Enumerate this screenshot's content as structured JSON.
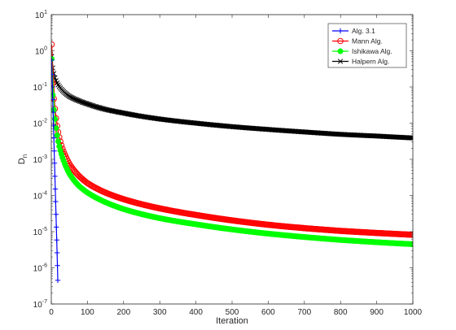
{
  "chart_data": {
    "type": "line",
    "xlabel": "Iteration",
    "ylabel": "D",
    "ylabel_subscript": "n",
    "xlim": [
      0,
      1000
    ],
    "ylim_log10": [
      -7,
      1
    ],
    "y_scale": "log",
    "grid": false,
    "legend_placement": "top-right",
    "x_ticks": [
      "0",
      "100",
      "200",
      "300",
      "400",
      "500",
      "600",
      "700",
      "800",
      "900",
      "1000"
    ],
    "y_ticks": [
      {
        "base": "10",
        "exp": "1"
      },
      {
        "base": "10",
        "exp": "0"
      },
      {
        "base": "10",
        "exp": "-1"
      },
      {
        "base": "10",
        "exp": "-2"
      },
      {
        "base": "10",
        "exp": "-3"
      },
      {
        "base": "10",
        "exp": "-4"
      },
      {
        "base": "10",
        "exp": "-5"
      },
      {
        "base": "10",
        "exp": "-6"
      },
      {
        "base": "10",
        "exp": "-7"
      }
    ],
    "series": [
      {
        "name": "Alg. 3.1",
        "color": "#0000ff",
        "marker": "plus",
        "x": [
          1,
          2,
          3,
          4,
          5,
          6,
          7,
          8,
          9,
          10,
          11,
          12,
          13,
          14,
          15,
          16,
          17,
          18
        ],
        "y": [
          0.55,
          0.22,
          0.1,
          0.045,
          0.02,
          0.0088,
          0.0039,
          0.0017,
          0.00078,
          0.00034,
          0.00015,
          6.8e-05,
          3e-05,
          1.34e-05,
          5.9e-06,
          2.6e-06,
          1.15e-06,
          4.5e-07
        ]
      },
      {
        "name": "Mann Alg.",
        "color": "#ff0000",
        "marker": "circle",
        "x": [
          1,
          10,
          20,
          30,
          50,
          75,
          100,
          150,
          200,
          300,
          400,
          500,
          600,
          700,
          800,
          900,
          1000
        ],
        "y": [
          1.5,
          0.025,
          0.005,
          0.0021,
          0.00075,
          0.00036,
          0.00022,
          0.00012,
          7.9e-05,
          4.4e-05,
          2.9e-05,
          2.05e-05,
          1.55e-05,
          1.25e-05,
          1.05e-05,
          9.2e-06,
          8.2e-06
        ]
      },
      {
        "name": "Ishikawa Alg.",
        "color": "#00ff00",
        "marker": "dot",
        "x": [
          1,
          10,
          20,
          30,
          50,
          75,
          100,
          150,
          200,
          300,
          400,
          500,
          600,
          700,
          800,
          900,
          1000
        ],
        "y": [
          0.6,
          0.013,
          0.0028,
          0.0012,
          0.0004,
          0.00019,
          0.00012,
          6.5e-05,
          4.2e-05,
          2.35e-05,
          1.6e-05,
          1.15e-05,
          8.8e-06,
          7.1e-06,
          5.9e-06,
          5.1e-06,
          4.5e-06
        ]
      },
      {
        "name": "Halpern Alg.",
        "color": "#000000",
        "marker": "x",
        "x": [
          1,
          5,
          10,
          20,
          30,
          50,
          75,
          100,
          150,
          200,
          300,
          400,
          500,
          600,
          700,
          800,
          900,
          1000
        ],
        "y": [
          0.7,
          0.3,
          0.18,
          0.11,
          0.082,
          0.055,
          0.042,
          0.034,
          0.024,
          0.019,
          0.013,
          0.01,
          0.008,
          0.0067,
          0.0057,
          0.0049,
          0.0044,
          0.0039
        ]
      }
    ]
  }
}
